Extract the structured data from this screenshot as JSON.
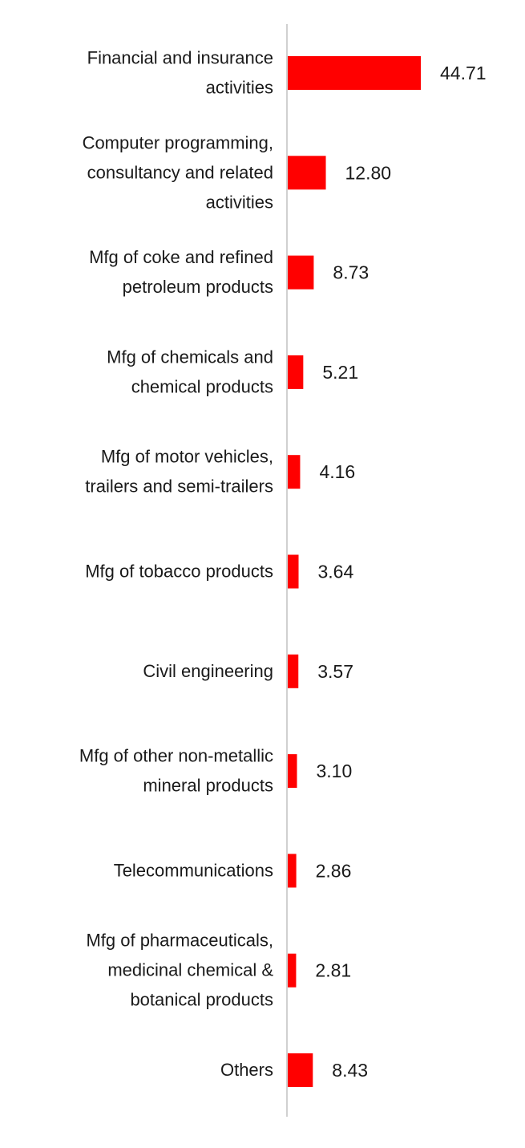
{
  "chart_data": {
    "type": "bar",
    "orientation": "horizontal",
    "categories": [
      [
        "Financial and insurance",
        "activities"
      ],
      [
        "Computer programming,",
        "consultancy and related",
        "activities"
      ],
      [
        "Mfg of coke and refined",
        "petroleum products"
      ],
      [
        "Mfg of chemicals and",
        "chemical products"
      ],
      [
        "Mfg of motor vehicles,",
        "trailers and semi-trailers"
      ],
      [
        "Mfg of tobacco products"
      ],
      [
        "Civil engineering"
      ],
      [
        "Mfg of other non-metallic",
        "mineral products"
      ],
      [
        "Telecommunications"
      ],
      [
        "Mfg of pharmaceuticals,",
        "medicinal chemical &",
        "botanical products"
      ],
      [
        "Others"
      ]
    ],
    "values": [
      44.71,
      12.8,
      8.73,
      5.21,
      4.16,
      3.64,
      3.57,
      3.1,
      2.86,
      2.81,
      8.43
    ],
    "value_labels": [
      "44.71",
      "12.80",
      "8.73",
      "5.21",
      "4.16",
      "3.64",
      "3.57",
      "3.10",
      "2.86",
      "2.81",
      "8.43"
    ],
    "bar_color": "#ff0000",
    "axis_color": "#d0d0d0",
    "grid": false,
    "legend": "none",
    "xlim": [
      0,
      44.71
    ]
  }
}
